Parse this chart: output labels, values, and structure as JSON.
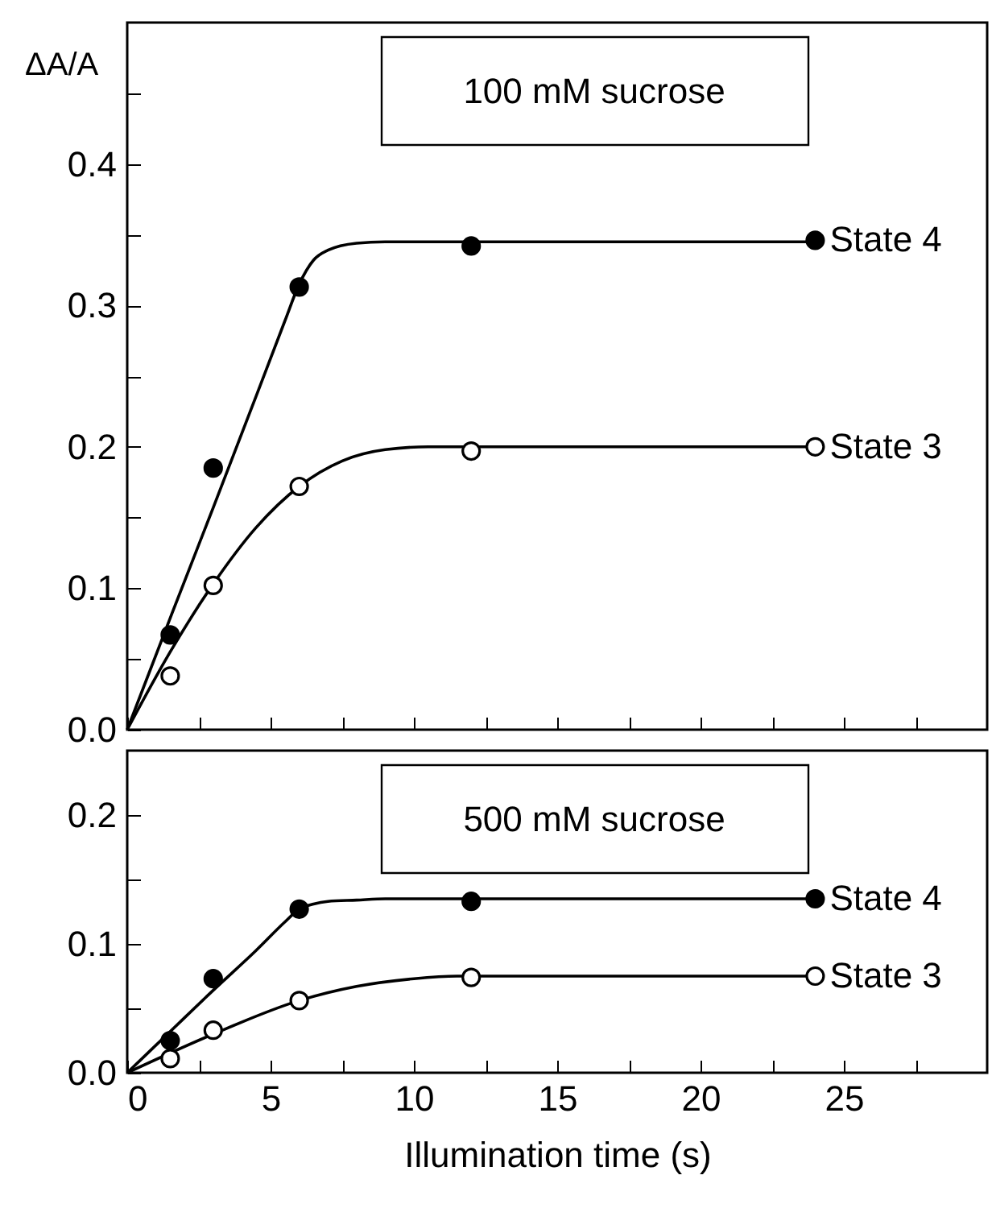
{
  "chart_data": [
    {
      "type": "scatter",
      "ylabel": "ΔA/A",
      "annotations": [
        "100 mM sucrose"
      ],
      "xlim": [
        0,
        30
      ],
      "ylim": [
        0,
        0.5
      ],
      "xticks": [
        0,
        {
          "value": 2.5,
          "label": null
        },
        5,
        {
          "value": 7.5,
          "label": null
        },
        10,
        {
          "value": 12.5,
          "label": null
        },
        15,
        {
          "value": 17.5,
          "label": null
        },
        20,
        {
          "value": 22.5,
          "label": null
        },
        25,
        {
          "value": 27.5,
          "label": null
        }
      ],
      "yticks": [
        {
          "value": 0,
          "label": "0.0"
        },
        {
          "value": 0.05,
          "label": null
        },
        0.1,
        {
          "value": 0.15,
          "label": null
        },
        0.2,
        {
          "value": 0.25,
          "label": null
        },
        0.3,
        {
          "value": 0.35,
          "label": null
        },
        0.4,
        {
          "value": 0.45,
          "label": null
        }
      ],
      "tick_labels": "y",
      "line_style": "solid",
      "series": [
        {
          "type": "line",
          "marker": "none",
          "color": "#000000",
          "x": [
            0,
            1.5,
            3,
            4.5,
            5.5,
            6,
            6.5,
            7,
            8,
            9,
            12,
            24
          ],
          "values": [
            0,
            0.079,
            0.157,
            0.236,
            0.289,
            0.315,
            0.332,
            0.339,
            0.344,
            0.345,
            0.345,
            0.345
          ]
        },
        {
          "type": "line",
          "marker": "none",
          "color": "#000000",
          "x": [
            0,
            1.5,
            3,
            4.5,
            6,
            7.5,
            9,
            10.5,
            12,
            24
          ],
          "values": [
            0,
            0.055,
            0.103,
            0.143,
            0.172,
            0.19,
            0.198,
            0.2,
            0.2,
            0.2
          ]
        },
        {
          "type": "scatter",
          "marker": "circle",
          "name": "State 4",
          "color": "#000000",
          "x": [
            1.5,
            3,
            6,
            12,
            24
          ],
          "values": [
            0.067,
            0.185,
            0.313,
            0.342,
            0.346
          ]
        },
        {
          "type": "scatter",
          "marker": "circle",
          "name": "State 3",
          "color": "#ffffff",
          "x": [
            1.5,
            3,
            6,
            12,
            24
          ],
          "values": [
            0.038,
            0.102,
            0.172,
            0.197,
            0.2
          ]
        }
      ]
    },
    {
      "type": "scatter",
      "xlabel": "Illumination time (s)",
      "annotations": [
        "500 mM sucrose"
      ],
      "xlim": [
        0,
        30
      ],
      "ylim": [
        0,
        0.25
      ],
      "xticks": [
        0,
        {
          "value": 2.5,
          "label": null
        },
        5,
        {
          "value": 7.5,
          "label": null
        },
        10,
        {
          "value": 12.5,
          "label": null
        },
        15,
        {
          "value": 17.5,
          "label": null
        },
        20,
        {
          "value": 22.5,
          "label": null
        },
        25,
        {
          "value": 27.5,
          "label": null
        }
      ],
      "yticks": [
        {
          "value": 0,
          "label": "0.0"
        },
        {
          "value": 0.05,
          "label": null
        },
        0.1,
        {
          "value": 0.15,
          "label": null
        },
        0.2
      ],
      "line_style": "solid",
      "series": [
        {
          "type": "line",
          "marker": "none",
          "color": "#000000",
          "x": [
            0,
            1.5,
            3,
            4.5,
            5.5,
            6,
            6.5,
            7,
            8,
            9,
            24
          ],
          "values": [
            0,
            0.032,
            0.064,
            0.095,
            0.117,
            0.127,
            0.131,
            0.133,
            0.134,
            0.135,
            0.135
          ]
        },
        {
          "type": "line",
          "marker": "none",
          "color": "#000000",
          "x": [
            0,
            3,
            6,
            8,
            10,
            11.5,
            24
          ],
          "values": [
            0,
            0.03,
            0.056,
            0.067,
            0.073,
            0.075,
            0.075
          ]
        },
        {
          "type": "scatter",
          "marker": "circle",
          "name": "State 4",
          "color": "#000000",
          "x": [
            1.5,
            3,
            6,
            12,
            24
          ],
          "values": [
            0.025,
            0.073,
            0.127,
            0.133,
            0.135
          ]
        },
        {
          "type": "scatter",
          "marker": "circle",
          "name": "State 3",
          "color": "#ffffff",
          "x": [
            1.5,
            3,
            6,
            12,
            24
          ],
          "values": [
            0.011,
            0.033,
            0.056,
            0.074,
            0.075
          ]
        }
      ]
    }
  ]
}
